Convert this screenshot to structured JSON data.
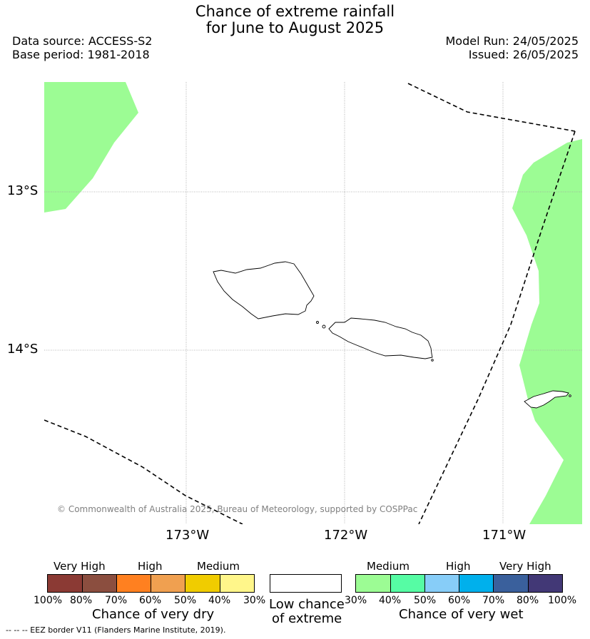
{
  "title": {
    "line1": "Chance of extreme rainfall",
    "line2": "for June to August 2025"
  },
  "meta": {
    "data_source": "Data source: ACCESS-S2",
    "base_period": "Base period: 1981-2018",
    "model_run": "Model Run: 24/05/2025",
    "issued": "Issued: 26/05/2025"
  },
  "axes": {
    "lat_ticks": [
      "13°S",
      "14°S"
    ],
    "lon_ticks": [
      "173°W",
      "172°W",
      "171°W"
    ]
  },
  "copyright": "© Commonwealth of Australia 2025, Bureau of Meteorology, supported by COSPPac",
  "legend": {
    "dry": {
      "title": "Chance of very dry",
      "groups": [
        "Very High",
        "High",
        "Medium"
      ],
      "colors": [
        "#8b3a34",
        "#8b4e3f",
        "#ff8020",
        "#f0a050",
        "#f0cc00",
        "#fff68a"
      ],
      "ticks": [
        "100%",
        "80%",
        "70%",
        "60%",
        "50%",
        "40%",
        "30%"
      ]
    },
    "neutral": {
      "line1": "Low chance",
      "line2": "of extreme",
      "color": "#ffffff"
    },
    "wet": {
      "title": "Chance of very wet",
      "groups": [
        "Medium",
        "High",
        "Very High"
      ],
      "colors": [
        "#9cfc94",
        "#56fca4",
        "#87cdf8",
        "#00b0ec",
        "#3a609c",
        "#423876"
      ],
      "ticks": [
        "30%",
        "40%",
        "50%",
        "60%",
        "70%",
        "80%",
        "100%"
      ]
    }
  },
  "map_colors": {
    "medium_wet": "#9cfc94"
  },
  "footnote": "--  --  -- EEZ border V11 (Flanders Marine Institute, 2019)."
}
